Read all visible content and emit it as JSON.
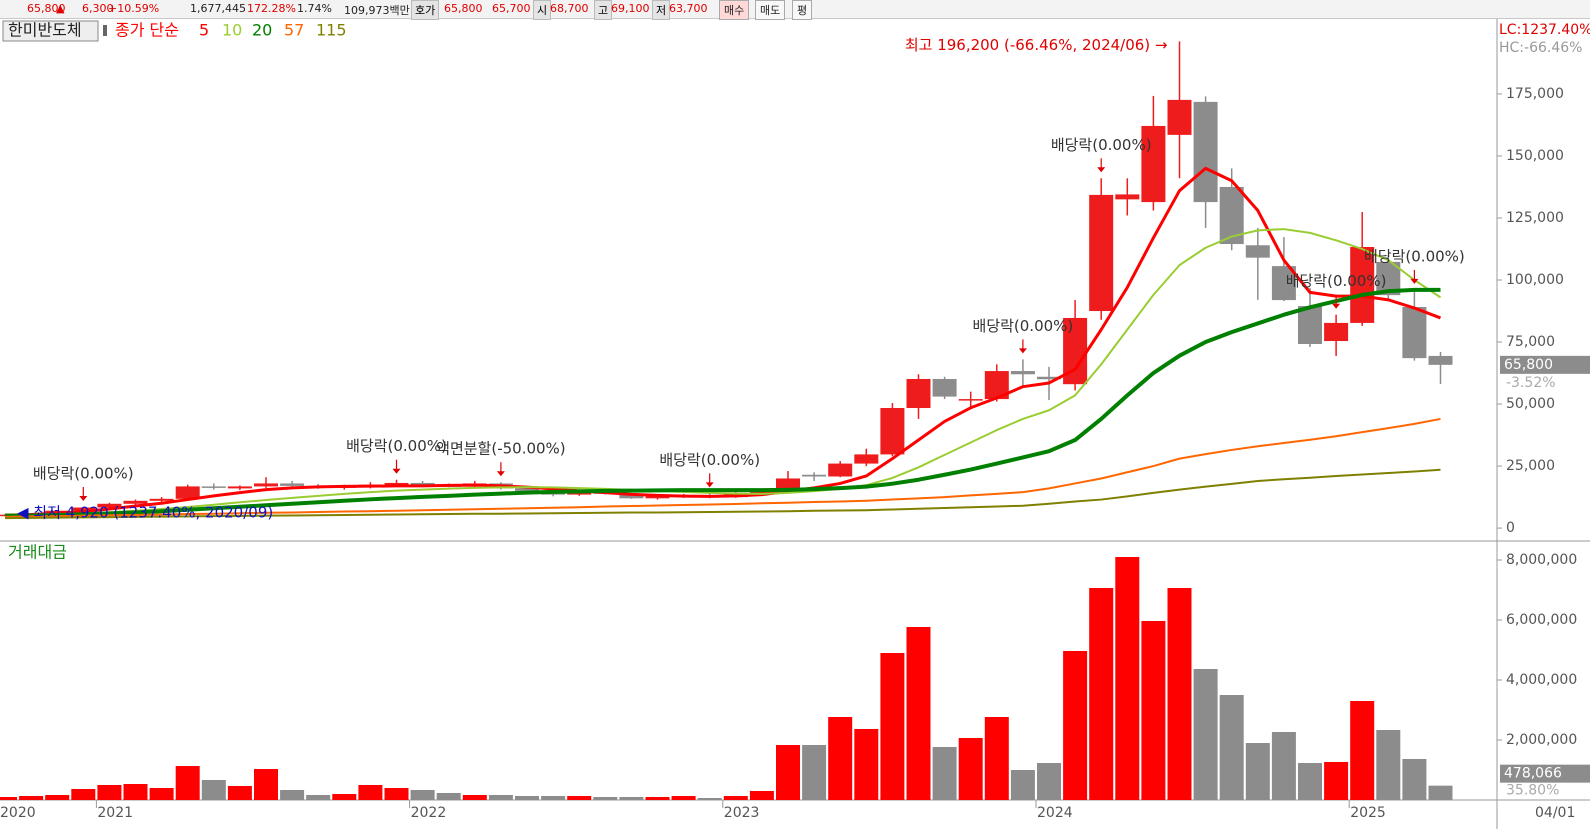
{
  "header": {
    "price": "65,800",
    "arrow": "▲",
    "change": "6,300",
    "change_rate": "+10.59%",
    "volume": "1,677,445",
    "volume_rate": "172.28%",
    "turnover": "1.74%",
    "amount": "109,973백만",
    "quote_label": "호가",
    "ask": "65,800",
    "bid": "65,700",
    "open_label": "시",
    "open": "68,700",
    "high_label": "고",
    "high": "69,100",
    "low_label": "저",
    "low": "63,700",
    "buy": "매수",
    "sell": "매도",
    "flat": "평"
  },
  "chart_data": [
    {
      "type": "candlestick",
      "title": "한미반도체",
      "ma_label": "종가 단순",
      "categories": [
        "2020",
        null,
        null,
        null,
        "2021",
        null,
        null,
        null,
        null,
        null,
        null,
        null,
        null,
        null,
        null,
        null,
        "2022",
        null,
        null,
        null,
        null,
        null,
        null,
        null,
        null,
        null,
        null,
        null,
        "2023",
        null,
        null,
        null,
        null,
        null,
        null,
        null,
        null,
        null,
        null,
        null,
        "2024",
        null,
        null,
        null,
        null,
        null,
        null,
        null,
        null,
        null,
        null,
        null,
        "2025",
        null,
        null,
        null
      ],
      "x_end_label": "04/01",
      "open": [
        5000,
        5400,
        5800,
        7000,
        8300,
        9800,
        11000,
        11800,
        16800,
        16000,
        16800,
        18000,
        17000,
        16300,
        16800,
        17500,
        18200,
        17200,
        17000,
        18000,
        16000,
        15000,
        13500,
        14500,
        13800,
        12000,
        12800,
        13200,
        12500,
        14200,
        14600,
        21500,
        20800,
        26000,
        29700,
        48400,
        60100,
        51500,
        52000,
        63300,
        61000,
        58000,
        87500,
        132500,
        131400,
        158500,
        171800,
        137500,
        114000,
        105600,
        89500,
        75400,
        82700,
        107300,
        89100,
        69400
      ],
      "high": [
        5600,
        6000,
        7200,
        8500,
        10200,
        11500,
        12500,
        17500,
        18000,
        17200,
        20500,
        19000,
        17800,
        17500,
        18500,
        19500,
        19000,
        18000,
        19000,
        18500,
        16800,
        15500,
        15200,
        15500,
        14200,
        13200,
        13800,
        14000,
        14500,
        15000,
        23000,
        22500,
        27000,
        32000,
        50400,
        62000,
        61000,
        55000,
        66000,
        68000,
        65000,
        91900,
        141000,
        141000,
        174200,
        196200,
        174000,
        145000,
        121000,
        117300,
        96800,
        86000,
        127400,
        110000,
        96000,
        71000
      ],
      "low": [
        4920,
        5000,
        5600,
        6800,
        8000,
        9300,
        10500,
        11500,
        15500,
        15300,
        16200,
        16500,
        15800,
        15500,
        16000,
        17000,
        16500,
        16500,
        16500,
        15500,
        14800,
        12800,
        13000,
        13500,
        11800,
        11500,
        12200,
        12000,
        12200,
        13500,
        14200,
        19000,
        20500,
        25000,
        29000,
        44000,
        52000,
        48000,
        51000,
        57000,
        51600,
        55500,
        84000,
        126000,
        128000,
        141000,
        121000,
        112000,
        92000,
        91500,
        73000,
        69400,
        81500,
        92000,
        67500,
        58100
      ],
      "close": [
        5400,
        5800,
        7000,
        8300,
        9800,
        11000,
        11800,
        16800,
        16200,
        16800,
        18000,
        17000,
        16300,
        16800,
        17500,
        18200,
        17200,
        17000,
        18000,
        16000,
        15000,
        13500,
        14500,
        13800,
        12000,
        12800,
        13200,
        12500,
        14200,
        14600,
        20000,
        20800,
        26000,
        29700,
        48400,
        60100,
        53000,
        52000,
        63300,
        62000,
        60000,
        84700,
        134300,
        134500,
        162100,
        172600,
        131400,
        114500,
        109000,
        91900,
        74200,
        82700,
        113300,
        93900,
        68500,
        65800
      ],
      "up_color": "#ee1c1c",
      "down_color": "#8c8c8c",
      "series": [
        {
          "name": "5",
          "color": "#ff0000",
          "values": [
            5200,
            5500,
            6000,
            6700,
            7700,
            8900,
            10000,
            11500,
            13000,
            14300,
            15500,
            16200,
            16600,
            16800,
            16900,
            17000,
            17000,
            17200,
            17300,
            17000,
            16500,
            15800,
            15000,
            14300,
            13600,
            13200,
            12900,
            12800,
            13000,
            13500,
            14800,
            16200,
            18000,
            21000,
            28000,
            35500,
            43000,
            48500,
            52500,
            57000,
            58500,
            64000,
            80000,
            97000,
            117000,
            136000,
            145000,
            140000,
            128000,
            108000,
            95000,
            93500,
            93500,
            92000,
            88700,
            84700
          ]
        },
        {
          "name": "10",
          "color": "#9acd32",
          "values": [
            5000,
            5200,
            5500,
            5900,
            6400,
            7000,
            7700,
            8500,
            9400,
            10400,
            11300,
            12200,
            13000,
            13800,
            14500,
            15100,
            15500,
            15900,
            16200,
            16400,
            16500,
            16400,
            16100,
            15800,
            15400,
            15000,
            14600,
            14200,
            13900,
            13800,
            14200,
            14900,
            15800,
            17300,
            20200,
            24500,
            29500,
            34500,
            39500,
            44000,
            47500,
            53500,
            66000,
            80000,
            94000,
            106000,
            113000,
            117500,
            120000,
            120500,
            119000,
            116000,
            112500,
            108000,
            100000,
            93000
          ]
        },
        {
          "name": "20",
          "color": "#008000",
          "values": [
            5000,
            5100,
            5300,
            5600,
            5900,
            6300,
            6800,
            7400,
            8000,
            8600,
            9200,
            9800,
            10400,
            11000,
            11600,
            12100,
            12600,
            13000,
            13500,
            13900,
            14300,
            14600,
            14800,
            15000,
            15100,
            15200,
            15300,
            15300,
            15300,
            15300,
            15400,
            15700,
            16100,
            16700,
            17900,
            19500,
            21500,
            23600,
            26000,
            28500,
            31000,
            35500,
            44000,
            53500,
            62500,
            69500,
            75000,
            79000,
            82500,
            86000,
            89000,
            91500,
            94000,
            95500,
            96000,
            96000
          ]
        },
        {
          "name": "57",
          "color": "#ff6600",
          "values": [
            4500,
            4700,
            4800,
            5000,
            5200,
            5300,
            5500,
            5700,
            5800,
            6000,
            6200,
            6300,
            6500,
            6700,
            6800,
            7000,
            7200,
            7400,
            7600,
            7800,
            8000,
            8200,
            8400,
            8700,
            8900,
            9100,
            9300,
            9500,
            9700,
            10000,
            10200,
            10500,
            10700,
            11000,
            11500,
            12000,
            12500,
            13200,
            13800,
            14500,
            16000,
            18000,
            20000,
            22500,
            25000,
            28000,
            29800,
            31500,
            33000,
            34300,
            35600,
            37000,
            38700,
            40300,
            42000,
            44000
          ]
        },
        {
          "name": "115",
          "color": "#808000",
          "values": [
            4000,
            4100,
            4200,
            4300,
            4400,
            4500,
            4600,
            4700,
            4800,
            4900,
            5000,
            5100,
            5200,
            5300,
            5400,
            5500,
            5600,
            5700,
            5800,
            5800,
            5900,
            6000,
            6100,
            6200,
            6300,
            6300,
            6400,
            6500,
            6600,
            6700,
            6800,
            7000,
            7100,
            7200,
            7500,
            7800,
            8100,
            8400,
            8700,
            9000,
            9800,
            10700,
            11500,
            12800,
            14200,
            15500,
            16700,
            17800,
            19000,
            19700,
            20300,
            21000,
            21600,
            22200,
            22800,
            23500
          ]
        }
      ],
      "ylim": [
        -4800,
        204800
      ],
      "yticks": [
        0,
        {
          "value": 25000,
          "label": "25,000"
        },
        {
          "value": 50000,
          "label": "50,000"
        },
        {
          "value": 75000,
          "label": "75,000"
        },
        {
          "value": 100000,
          "label": "100,000"
        },
        {
          "value": 125000,
          "label": "125,000"
        },
        {
          "value": 150000,
          "label": "150,000"
        },
        {
          "value": 175000,
          "label": "175,000"
        }
      ],
      "annotations": [
        {
          "text": "배당락(0.00%)",
          "index": 3
        },
        {
          "text": "배당락(0.00%)",
          "index": 15
        },
        {
          "text": "액면분할(-50.00%)",
          "index": 19
        },
        {
          "text": "배당락(0.00%)",
          "index": 27
        },
        {
          "text": "배당락(0.00%)",
          "index": 39
        },
        {
          "text": "배당락(0.00%)",
          "index": 42
        },
        {
          "text": "배당락(0.00%)",
          "index": 51
        },
        {
          "text": "배당락(0.00%)",
          "index": 54
        }
      ],
      "high_note": "최고 196,200 (-66.46%, 2024/06) →",
      "low_note": "◀ 최저 4,920 (1237.40%, 2020/09)",
      "lc_label": "LC:1237.40%",
      "hc_label": "HC:-66.46%",
      "last_label": "65,800",
      "last_change": "-3.52%"
    },
    {
      "type": "bar",
      "title": "거래대금",
      "values": [
        100000,
        133000,
        167000,
        367000,
        500000,
        533000,
        400000,
        1133000,
        667000,
        467000,
        1033000,
        333000,
        167000,
        200000,
        500000,
        400000,
        333000,
        233000,
        167000,
        167000,
        133000,
        133000,
        133000,
        100000,
        100000,
        100000,
        133000,
        67000,
        133000,
        300000,
        1833000,
        1833000,
        2767000,
        2367000,
        4900000,
        5767000,
        1767000,
        2067000,
        2767000,
        1000000,
        1233000,
        4967000,
        7067000,
        8100000,
        5967000,
        7067000,
        4367000,
        3500000,
        1900000,
        2267000,
        1233000,
        1267000,
        3300000,
        2333000,
        1367000,
        478066
      ],
      "up_color": "#ff0000",
      "down_color": "#8c8c8c",
      "ylim": [
        0,
        8600000
      ],
      "yticks": [
        {
          "value": 2000000,
          "label": "2,000,000"
        },
        {
          "value": 4000000,
          "label": "4,000,000"
        },
        {
          "value": 6000000,
          "label": "6,000,000"
        },
        {
          "value": 8000000,
          "label": "8,000,000"
        }
      ],
      "last_label": "478,066",
      "last_pct": "35.80%"
    }
  ]
}
